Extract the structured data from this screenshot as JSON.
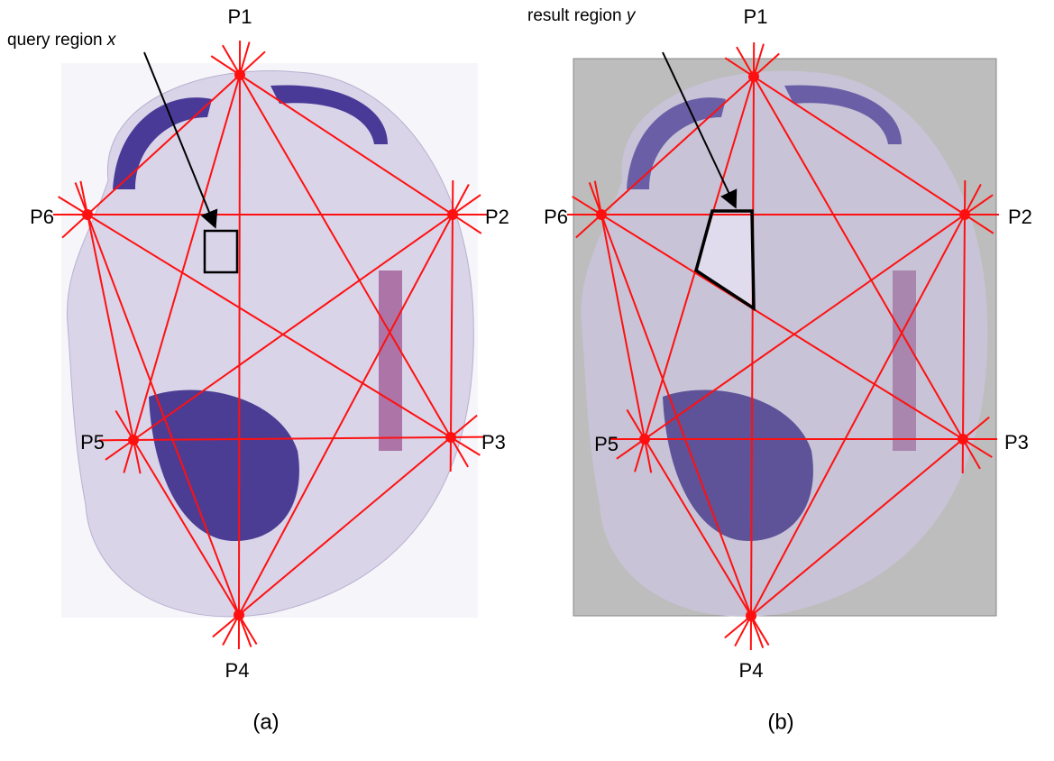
{
  "panels": [
    {
      "caption": "(a)",
      "annotation": {
        "text": "query region",
        "variable": "x"
      },
      "points": [
        "P1",
        "P2",
        "P3",
        "P4",
        "P5",
        "P6"
      ]
    },
    {
      "caption": "(b)",
      "annotation": {
        "text": "result region",
        "variable": "y"
      },
      "points": [
        "P1",
        "P2",
        "P3",
        "P4",
        "P5",
        "P6"
      ]
    }
  ]
}
